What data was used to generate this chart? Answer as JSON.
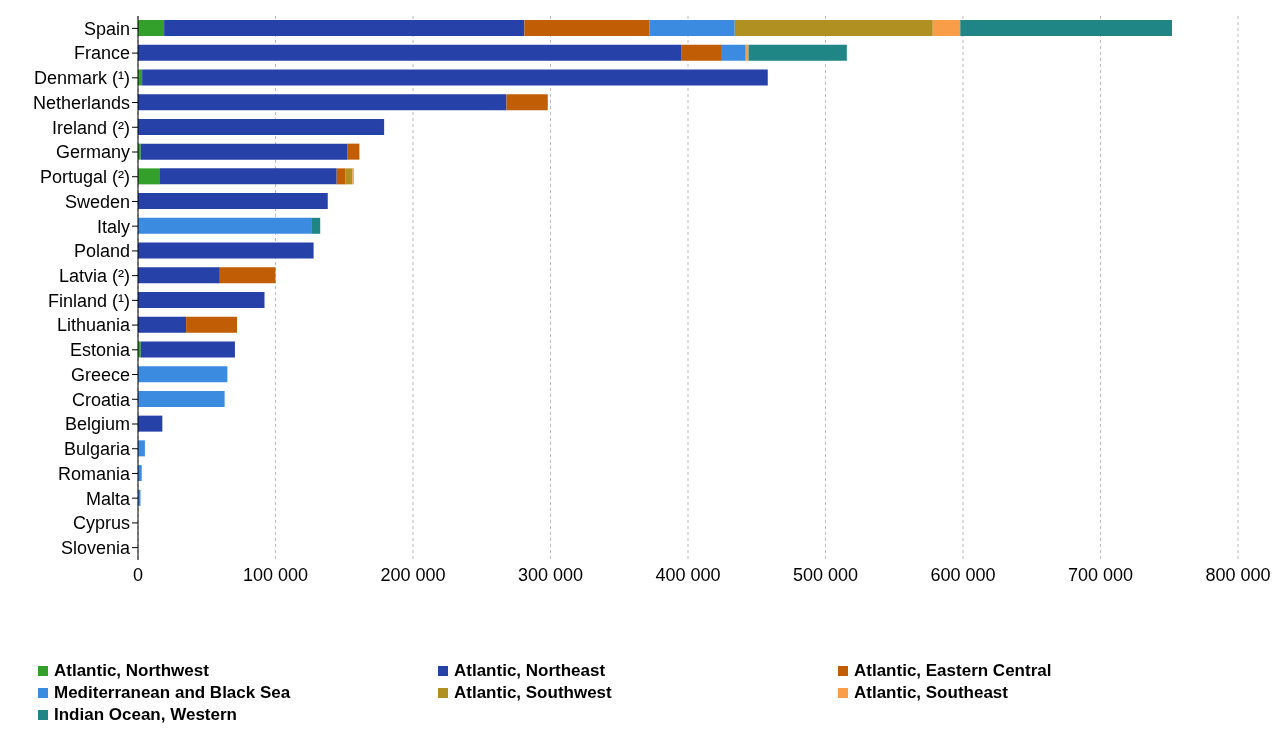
{
  "chart_data": {
    "type": "bar",
    "orientation": "horizontal",
    "stacked": true,
    "categories": [
      "Spain",
      "France",
      "Denmark (¹)",
      "Netherlands",
      "Ireland (²)",
      "Germany",
      "Portugal (²)",
      "Sweden",
      "Italy",
      "Poland",
      "Latvia (²)",
      "Finland (¹)",
      "Lithuania",
      "Estonia",
      "Greece",
      "Croatia",
      "Belgium",
      "Bulgaria",
      "Romania",
      "Malta",
      "Cyprus",
      "Slovenia"
    ],
    "series": [
      {
        "name": "Atlantic, Northwest",
        "color": "#33a02c",
        "values": [
          19000,
          0,
          3000,
          0,
          0,
          2000,
          16000,
          0,
          0,
          0,
          0,
          0,
          0,
          2000,
          0,
          0,
          0,
          0,
          0,
          0,
          0,
          0
        ]
      },
      {
        "name": "Atlantic, Northeast",
        "color": "#2642a8",
        "values": [
          262000,
          395000,
          455000,
          268000,
          179000,
          150500,
          128500,
          138000,
          0,
          127700,
          59500,
          92000,
          35000,
          68500,
          0,
          0,
          17700,
          0,
          0,
          0,
          0,
          0
        ]
      },
      {
        "name": "Atlantic, Eastern Central",
        "color": "#c15d05",
        "values": [
          91000,
          29000,
          0,
          30000,
          0,
          8500,
          6500,
          0,
          0,
          0,
          40500,
          0,
          37000,
          0,
          0,
          0,
          0,
          0,
          0,
          0,
          0,
          0
        ]
      },
      {
        "name": "Mediterranean and Black Sea",
        "color": "#3b8be0",
        "values": [
          62000,
          18000,
          0,
          0,
          0,
          0,
          0,
          0,
          126500,
          0,
          0,
          0,
          0,
          0,
          65000,
          63000,
          0,
          5000,
          2700,
          1800,
          0,
          0
        ]
      },
      {
        "name": "Atlantic, Southwest",
        "color": "#b09020",
        "values": [
          144000,
          0,
          0,
          0,
          0,
          0,
          5000,
          0,
          0,
          0,
          0,
          0,
          0,
          0,
          0,
          0,
          0,
          0,
          0,
          0,
          0,
          0
        ]
      },
      {
        "name": "Atlantic, Southeast",
        "color": "#f99d49",
        "values": [
          20000,
          2000,
          0,
          0,
          0,
          0,
          1000,
          0,
          0,
          0,
          0,
          0,
          0,
          0,
          0,
          0,
          0,
          0,
          0,
          0,
          0,
          0
        ]
      },
      {
        "name": "Indian Ocean, Western",
        "color": "#1f8585",
        "values": [
          154000,
          71500,
          0,
          0,
          0,
          0,
          0,
          0,
          6000,
          0,
          0,
          0,
          0,
          0,
          0,
          0,
          0,
          0,
          0,
          0,
          0,
          0
        ]
      }
    ],
    "xlim": [
      0,
      800000
    ],
    "xticks": [
      0,
      {
        "value": 100000,
        "label": "100 000"
      },
      {
        "value": 200000,
        "label": "200 000"
      },
      {
        "value": 300000,
        "label": "300 000"
      },
      {
        "value": 400000,
        "label": "400 000"
      },
      {
        "value": 500000,
        "label": "500 000"
      },
      {
        "value": 600000,
        "label": "600 000"
      },
      {
        "value": 700000,
        "label": "700 000"
      },
      {
        "value": 800000,
        "label": "800 000"
      }
    ],
    "grid": "x",
    "legend": "bottom"
  }
}
